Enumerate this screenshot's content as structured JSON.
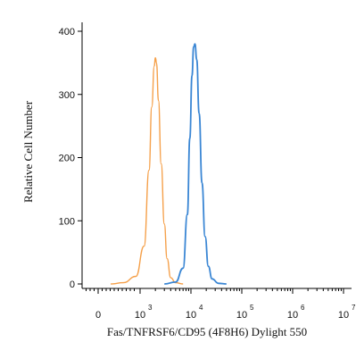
{
  "chart_data": {
    "type": "line",
    "title": "",
    "xlabel": "Fas/TNFRSF6/CD95 (4F8H6) Dylight 550",
    "ylabel": "Relative Cell Number",
    "x_scale": "biexponential",
    "x_tick_labels": [
      {
        "value": 0,
        "base": "0",
        "exp": ""
      },
      {
        "value": 1000,
        "base": "10",
        "exp": "3"
      },
      {
        "value": 10000,
        "base": "10",
        "exp": "4"
      },
      {
        "value": 100000,
        "base": "10",
        "exp": "5"
      },
      {
        "value": 1000000,
        "base": "10",
        "exp": "6"
      },
      {
        "value": 10000000,
        "base": "10",
        "exp": "7"
      }
    ],
    "y_ticks": [
      0,
      100,
      200,
      300,
      400
    ],
    "ylim": [
      0,
      430
    ],
    "grid": false,
    "series": [
      {
        "color": "#f5a04a",
        "x": [
          300,
          600,
          900,
          1200,
          1500,
          1700,
          1900,
          2000,
          2100,
          2300,
          2600,
          3000,
          3400,
          4000,
          5000,
          7000
        ],
        "y": [
          0,
          2,
          12,
          60,
          180,
          280,
          345,
          358,
          350,
          290,
          190,
          95,
          40,
          10,
          2,
          0
        ]
      },
      {
        "color": "#3a86d4",
        "x": [
          3000,
          5000,
          7000,
          8500,
          9500,
          10500,
          11300,
          12000,
          13000,
          14500,
          16500,
          19000,
          22000,
          26000,
          35000,
          50000
        ],
        "y": [
          0,
          3,
          25,
          110,
          230,
          330,
          375,
          380,
          355,
          270,
          160,
          75,
          28,
          8,
          1,
          0
        ]
      }
    ]
  }
}
